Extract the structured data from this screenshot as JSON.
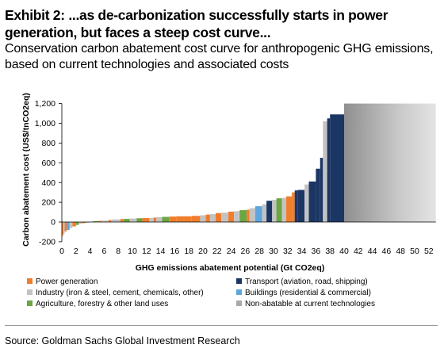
{
  "header": {
    "title": "Exhibit 2: ...as de-carbonization successfully starts in power generation, but faces a steep cost curve...",
    "subtitle": "Conservation carbon abatement cost curve for anthropogenic GHG emissions, based on current technologies and associated costs"
  },
  "source": "Source: Goldman Sachs Global Investment Research",
  "colors": {
    "power": "#f07d2c",
    "transport": "#1c3664",
    "industry": "#c3c3c3",
    "buildings": "#5ea6dc",
    "agriculture": "#6ba642",
    "non_abatable": "#a9a9a9"
  },
  "chart_data": {
    "type": "bar",
    "subtype": "marginal-abatement-cost-curve",
    "xlabel": "GHG emissions abatement potential  (Gt CO2eq)",
    "ylabel": "Carbon abatement cost (US$/tnCO2eq)",
    "xlim": [
      0,
      53
    ],
    "ylim": [
      -200,
      1200
    ],
    "x_ticks": [
      0,
      2,
      4,
      6,
      8,
      10,
      12,
      14,
      16,
      18,
      20,
      22,
      24,
      26,
      28,
      30,
      32,
      34,
      36,
      38,
      40,
      42,
      44,
      46,
      48,
      50,
      52
    ],
    "y_ticks": [
      -200,
      0,
      200,
      400,
      600,
      800,
      1000,
      1200
    ],
    "y_tick_labels": [
      "-200",
      "0",
      "200",
      "400",
      "600",
      "800",
      "1,000",
      "1,200"
    ],
    "legend_position": "bottom",
    "legend": [
      {
        "key": "power",
        "label": "Power generation"
      },
      {
        "key": "transport",
        "label": "Transport (aviation, road, shipping)"
      },
      {
        "key": "industry",
        "label": "Industry (iron & steel, cement, chemicals, other)"
      },
      {
        "key": "buildings",
        "label": "Buildings (residential & commercial)"
      },
      {
        "key": "agriculture",
        "label": "Agriculture, forestry & other land uses"
      },
      {
        "key": "non_abatable",
        "label": "Non-abatable at current  technologies"
      }
    ],
    "segments": [
      {
        "x0": 0.0,
        "x1": 0.2,
        "y": -140,
        "sector": "power"
      },
      {
        "x0": 0.2,
        "x1": 0.4,
        "y": -120,
        "sector": "industry"
      },
      {
        "x0": 0.4,
        "x1": 0.7,
        "y": -95,
        "sector": "power"
      },
      {
        "x0": 0.7,
        "x1": 1.1,
        "y": -80,
        "sector": "buildings"
      },
      {
        "x0": 1.1,
        "x1": 1.5,
        "y": -60,
        "sector": "industry"
      },
      {
        "x0": 1.5,
        "x1": 2.0,
        "y": -45,
        "sector": "power"
      },
      {
        "x0": 2.0,
        "x1": 2.4,
        "y": -30,
        "sector": "agriculture"
      },
      {
        "x0": 2.4,
        "x1": 2.8,
        "y": -20,
        "sector": "industry"
      },
      {
        "x0": 2.8,
        "x1": 3.3,
        "y": -12,
        "sector": "power"
      },
      {
        "x0": 3.3,
        "x1": 3.8,
        "y": -6,
        "sector": "buildings"
      },
      {
        "x0": 3.8,
        "x1": 4.4,
        "y": 3,
        "sector": "industry"
      },
      {
        "x0": 4.4,
        "x1": 5.2,
        "y": 8,
        "sector": "agriculture"
      },
      {
        "x0": 5.2,
        "x1": 5.6,
        "y": 12,
        "sector": "power"
      },
      {
        "x0": 5.6,
        "x1": 6.6,
        "y": 15,
        "sector": "industry"
      },
      {
        "x0": 6.6,
        "x1": 7.0,
        "y": 20,
        "sector": "power"
      },
      {
        "x0": 7.0,
        "x1": 8.3,
        "y": 26,
        "sector": "industry"
      },
      {
        "x0": 8.3,
        "x1": 8.8,
        "y": 30,
        "sector": "power"
      },
      {
        "x0": 8.8,
        "x1": 9.6,
        "y": 32,
        "sector": "agriculture"
      },
      {
        "x0": 9.6,
        "x1": 10.6,
        "y": 35,
        "sector": "industry"
      },
      {
        "x0": 10.6,
        "x1": 11.4,
        "y": 38,
        "sector": "agriculture"
      },
      {
        "x0": 11.4,
        "x1": 12.4,
        "y": 40,
        "sector": "power"
      },
      {
        "x0": 12.4,
        "x1": 13.0,
        "y": 42,
        "sector": "industry"
      },
      {
        "x0": 13.0,
        "x1": 13.4,
        "y": 45,
        "sector": "power"
      },
      {
        "x0": 13.4,
        "x1": 14.2,
        "y": 48,
        "sector": "industry"
      },
      {
        "x0": 14.2,
        "x1": 15.2,
        "y": 52,
        "sector": "agriculture"
      },
      {
        "x0": 15.2,
        "x1": 16.2,
        "y": 55,
        "sector": "power"
      },
      {
        "x0": 16.2,
        "x1": 18.4,
        "y": 58,
        "sector": "power"
      },
      {
        "x0": 18.4,
        "x1": 19.6,
        "y": 62,
        "sector": "power"
      },
      {
        "x0": 19.6,
        "x1": 20.4,
        "y": 68,
        "sector": "industry"
      },
      {
        "x0": 20.4,
        "x1": 21.0,
        "y": 75,
        "sector": "power"
      },
      {
        "x0": 21.0,
        "x1": 21.8,
        "y": 80,
        "sector": "industry"
      },
      {
        "x0": 21.8,
        "x1": 22.6,
        "y": 90,
        "sector": "power"
      },
      {
        "x0": 22.6,
        "x1": 23.6,
        "y": 95,
        "sector": "industry"
      },
      {
        "x0": 23.6,
        "x1": 24.4,
        "y": 105,
        "sector": "power"
      },
      {
        "x0": 24.4,
        "x1": 25.2,
        "y": 110,
        "sector": "industry"
      },
      {
        "x0": 25.2,
        "x1": 26.2,
        "y": 120,
        "sector": "agriculture"
      },
      {
        "x0": 26.2,
        "x1": 26.6,
        "y": 125,
        "sector": "power"
      },
      {
        "x0": 26.6,
        "x1": 27.4,
        "y": 140,
        "sector": "industry"
      },
      {
        "x0": 27.4,
        "x1": 28.4,
        "y": 160,
        "sector": "buildings"
      },
      {
        "x0": 28.4,
        "x1": 29.0,
        "y": 180,
        "sector": "industry"
      },
      {
        "x0": 29.0,
        "x1": 29.8,
        "y": 215,
        "sector": "transport"
      },
      {
        "x0": 29.8,
        "x1": 30.4,
        "y": 225,
        "sector": "industry"
      },
      {
        "x0": 30.4,
        "x1": 31.2,
        "y": 240,
        "sector": "agriculture"
      },
      {
        "x0": 31.2,
        "x1": 31.8,
        "y": 245,
        "sector": "industry"
      },
      {
        "x0": 31.8,
        "x1": 32.6,
        "y": 260,
        "sector": "power"
      },
      {
        "x0": 32.6,
        "x1": 33.0,
        "y": 300,
        "sector": "power"
      },
      {
        "x0": 33.0,
        "x1": 33.4,
        "y": 320,
        "sector": "transport"
      },
      {
        "x0": 33.4,
        "x1": 34.4,
        "y": 325,
        "sector": "transport"
      },
      {
        "x0": 34.4,
        "x1": 35.0,
        "y": 380,
        "sector": "industry"
      },
      {
        "x0": 35.0,
        "x1": 36.0,
        "y": 410,
        "sector": "transport"
      },
      {
        "x0": 36.0,
        "x1": 36.6,
        "y": 540,
        "sector": "transport"
      },
      {
        "x0": 36.6,
        "x1": 37.0,
        "y": 650,
        "sector": "transport"
      },
      {
        "x0": 37.0,
        "x1": 37.6,
        "y": 1020,
        "sector": "industry"
      },
      {
        "x0": 37.6,
        "x1": 38.0,
        "y": 1050,
        "sector": "transport"
      },
      {
        "x0": 38.0,
        "x1": 40.0,
        "y": 1090,
        "sector": "transport"
      },
      {
        "x0": 40.0,
        "x1": 53.0,
        "y": 1200,
        "sector": "non_abatable"
      }
    ]
  }
}
